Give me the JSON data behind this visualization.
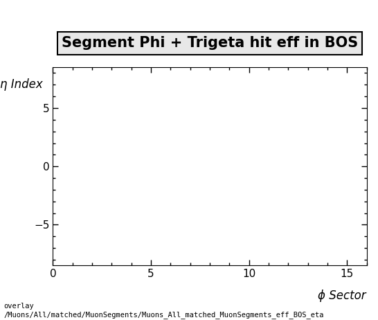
{
  "title": "Segment Phi + Trigeta hit eff in BOS",
  "xlabel": "ϕ Sector",
  "ylabel": "η Index",
  "xlim": [
    0,
    16
  ],
  "ylim": [
    -8.5,
    8.5
  ],
  "xticks": [
    0,
    5,
    10,
    15
  ],
  "yticks": [
    -5,
    0,
    5
  ],
  "background_color": "#ffffff",
  "plot_bg_color": "#ffffff",
  "footer_line1": "overlay",
  "footer_line2": "/Muons/All/matched/MuonSegments/Muons_All_matched_MuonSegments_eff_BOS_eta",
  "title_fontsize": 15,
  "axis_label_fontsize": 12,
  "tick_fontsize": 11,
  "footer_fontsize": 7.5
}
